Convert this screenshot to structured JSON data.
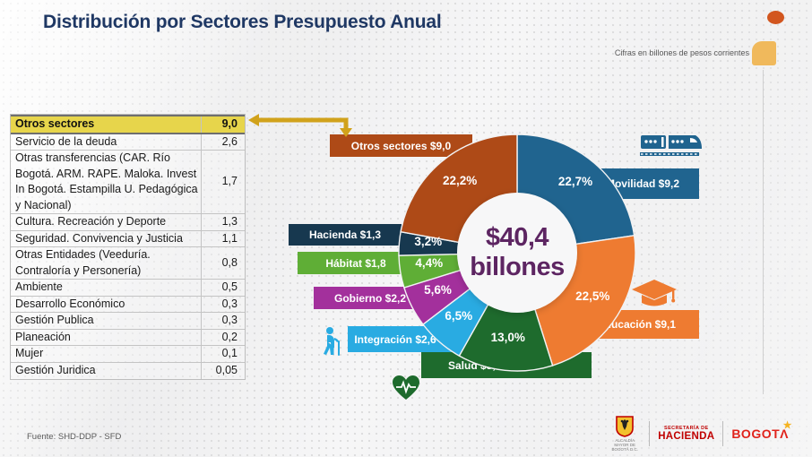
{
  "title": "Distribución por Sectores Presupuesto Anual",
  "units_note": "Cifras  en billones de pesos corrientes",
  "colors": {
    "title_navy": "#1f3864",
    "highlight_row": "#e7d54b",
    "arrow_gold": "#d1a21b",
    "center_text": "#5d2562",
    "deco_circle": "#d2561f",
    "deco_square": "#f0b95c"
  },
  "table": {
    "rows": [
      {
        "label": "Otros sectores",
        "value": "9,0",
        "highlight": true
      },
      {
        "label": "Servicio de la deuda",
        "value": "2,6",
        "highlight": false
      },
      {
        "label": "Otras transferencias (CAR. Río Bogotá. ARM. RAPE. Maloka. Invest In Bogotá. Estampilla U. Pedagógica y Nacional)",
        "value": "1,7",
        "highlight": false
      },
      {
        "label": "Cultura. Recreación y Deporte",
        "value": "1,3",
        "highlight": false
      },
      {
        "label": "Seguridad. Convivencia y Justicia",
        "value": "1,1",
        "highlight": false
      },
      {
        "label": "Otras Entidades (Veeduría. Contraloría y Personería)",
        "value": "0,8",
        "highlight": false
      },
      {
        "label": "Ambiente",
        "value": "0,5",
        "highlight": false
      },
      {
        "label": "Desarrollo Económico",
        "value": "0,3",
        "highlight": false
      },
      {
        "label": "Gestión Publica",
        "value": "0,3",
        "highlight": false
      },
      {
        "label": "Planeación",
        "value": "0,2",
        "highlight": false
      },
      {
        "label": "Mujer",
        "value": "0,1",
        "highlight": false
      },
      {
        "label": "Gestión Juridica",
        "value": "0,05",
        "highlight": false
      }
    ]
  },
  "chart_data": {
    "type": "pie",
    "variant": "donut",
    "title": "Distribución por Sectores Presupuesto Anual",
    "units_note": "Cifras en billones de pesos corrientes",
    "total_label": "$40,4 billones",
    "center_label": {
      "line1": "$40,4",
      "line2": "billones"
    },
    "total": 40.4,
    "start_angle_deg": 0,
    "direction": "clockwise",
    "legend_position": "callout-boxes",
    "sectors": [
      {
        "name": "Movilidad",
        "label": "Movilidad  $9,2",
        "value": 9.2,
        "pct": "22,7%",
        "pct_num": 22.7,
        "color": "#20648f"
      },
      {
        "name": "Educación",
        "label": "Educación  $9,1",
        "value": 9.1,
        "pct": "22,5%",
        "pct_num": 22.5,
        "color": "#ee7b31"
      },
      {
        "name": "Salud",
        "label": "Salud  $5,3",
        "value": 5.3,
        "pct": "13,0%",
        "pct_num": 13.0,
        "color": "#1e6b2d"
      },
      {
        "name": "Integración",
        "label": "Integración $2,6",
        "value": 2.6,
        "pct": "6,5%",
        "pct_num": 6.5,
        "color": "#29abe2"
      },
      {
        "name": "Gobierno",
        "label": "Gobierno  $2,2",
        "value": 2.2,
        "pct": "5,6%",
        "pct_num": 5.6,
        "color": "#a3309c"
      },
      {
        "name": "Hábitat",
        "label": "Hábitat  $1,8",
        "value": 1.8,
        "pct": "4,4%",
        "pct_num": 4.4,
        "color": "#5fae36"
      },
      {
        "name": "Hacienda",
        "label": "Hacienda $1,3",
        "value": 1.3,
        "pct": "3,2%",
        "pct_num": 3.2,
        "color": "#17384f"
      },
      {
        "name": "Otros sectores",
        "label": "Otros sectores $9,0",
        "value": 9.0,
        "pct": "22,2%",
        "pct_num": 22.2,
        "color": "#ae4a17"
      }
    ]
  },
  "footer": {
    "source": "Fuente: SHD-DDP - SFD",
    "logos": {
      "alcaldia_caption": "ALCALDÍA MAYOR DE BOGOTÁ D.C.",
      "secretaria_line1": "SECRETARÍA DE",
      "secretaria_line2": "HACIENDA",
      "bogota_text": "BOGOT",
      "bogota_a": "Λ",
      "bogota_star": "★"
    }
  }
}
